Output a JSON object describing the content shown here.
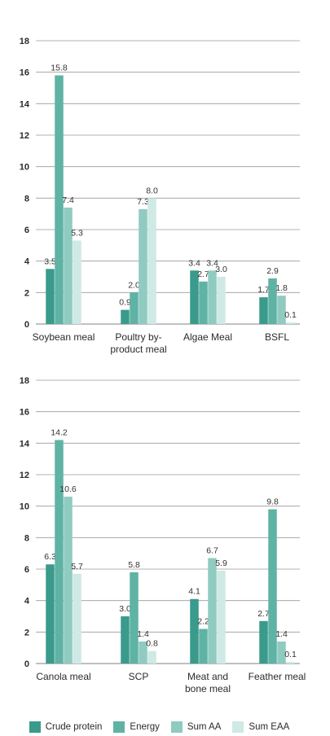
{
  "colors": {
    "Crude protein": "#3a9a8c",
    "Energy": "#5fb3a5",
    "Sum AA": "#8fcbc0",
    "Sum EAA": "#cfe9e5",
    "grid": "#9a9a9a"
  },
  "legend": [
    {
      "label": "Crude protein"
    },
    {
      "label": "Energy"
    },
    {
      "label": "Sum AA"
    },
    {
      "label": "Sum EAA"
    }
  ],
  "chart_data": [
    {
      "type": "bar",
      "ylim": [
        0,
        18
      ],
      "yticks": [
        "0",
        "2",
        "4",
        "6",
        "8",
        "10",
        "12",
        "14",
        "16",
        "18"
      ],
      "categories": [
        [
          "Soybean meal"
        ],
        [
          "Poultry by-",
          "product meal"
        ],
        [
          "Algae Meal"
        ],
        [
          "BSFL"
        ]
      ],
      "series": [
        {
          "name": "Crude protein",
          "values": [
            3.5,
            0.9,
            3.4,
            1.7
          ],
          "labels": [
            "3.5",
            "0.9",
            "3.4",
            "1.7"
          ]
        },
        {
          "name": "Energy",
          "values": [
            15.8,
            2.0,
            2.7,
            2.9
          ],
          "labels": [
            "15.8",
            "2.0",
            "2.7",
            "2.9"
          ]
        },
        {
          "name": "Sum AA",
          "values": [
            7.4,
            7.3,
            3.4,
            1.8
          ],
          "labels": [
            "7.4",
            "7.3",
            "3.4",
            "1.8"
          ]
        },
        {
          "name": "Sum EAA",
          "values": [
            5.3,
            8.0,
            3.0,
            0.1
          ],
          "labels": [
            "5.3",
            "8.0",
            "3.0",
            "0.1"
          ]
        }
      ]
    },
    {
      "type": "bar",
      "ylim": [
        0,
        18
      ],
      "yticks": [
        "0",
        "2",
        "4",
        "6",
        "8",
        "10",
        "12",
        "14",
        "16",
        "18"
      ],
      "categories": [
        [
          "Canola meal"
        ],
        [
          "SCP"
        ],
        [
          "Meat and",
          "bone meal"
        ],
        [
          "Feather meal"
        ]
      ],
      "series": [
        {
          "name": "Crude protein",
          "values": [
            6.3,
            3.0,
            4.1,
            2.7
          ],
          "labels": [
            "6.3",
            "3.0",
            "4.1",
            "2.7"
          ]
        },
        {
          "name": "Energy",
          "values": [
            14.2,
            5.8,
            2.2,
            9.8
          ],
          "labels": [
            "14.2",
            "5.8",
            "2.2",
            "9.8"
          ]
        },
        {
          "name": "Sum AA",
          "values": [
            10.6,
            1.4,
            6.7,
            1.4
          ],
          "labels": [
            "10.6",
            "1.4",
            "6.7",
            "1.4"
          ]
        },
        {
          "name": "Sum EAA",
          "values": [
            5.7,
            0.8,
            5.9,
            0.1
          ],
          "labels": [
            "5.7",
            "0.8",
            "5.9",
            "0.1"
          ]
        }
      ]
    }
  ]
}
